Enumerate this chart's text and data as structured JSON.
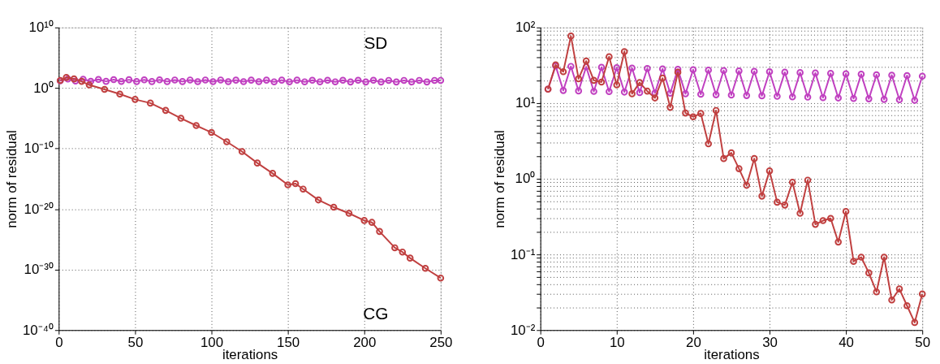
{
  "chart_data": [
    {
      "type": "line",
      "xlabel": "iterations",
      "ylabel": "norm of residual",
      "log": true,
      "grid": true,
      "marker": "circle",
      "line_style": "solid",
      "xlim": [
        0,
        250
      ],
      "xticks": [
        0,
        50,
        100,
        150,
        200,
        250
      ],
      "ylim": [
        1e-40,
        10000000000.0
      ],
      "yticks": [
        {
          "value": 1e-40,
          "label": "10⁻⁴⁰"
        },
        {
          "value": 1e-30,
          "label": "10⁻³⁰"
        },
        {
          "value": 1e-20,
          "label": "10⁻²⁰"
        },
        {
          "value": 1e-10,
          "label": "10⁻¹⁰"
        },
        {
          "value": 1,
          "label": "10⁰"
        },
        {
          "value": 10000000000.0,
          "label": "10¹⁰"
        }
      ],
      "series": [
        {
          "name": "SD",
          "color": "#c040c0",
          "x": [
            1,
            6,
            11,
            16,
            21,
            26,
            31,
            36,
            41,
            46,
            51,
            56,
            61,
            66,
            71,
            76,
            81,
            86,
            91,
            96,
            101,
            106,
            111,
            116,
            121,
            126,
            131,
            136,
            141,
            146,
            151,
            156,
            161,
            166,
            171,
            176,
            181,
            186,
            191,
            196,
            201,
            206,
            211,
            216,
            221,
            226,
            231,
            236,
            241,
            246,
            250
          ],
          "values": [
            15,
            30,
            14,
            28,
            13,
            26,
            12.5,
            24,
            12,
            23,
            11.5,
            22,
            11.5,
            22,
            11.5,
            21,
            11.5,
            21,
            11,
            21,
            11,
            21,
            11,
            20,
            11,
            20,
            11,
            20,
            10.5,
            20,
            10.5,
            20,
            10.5,
            19,
            10.5,
            19,
            10.5,
            19,
            10,
            19,
            10,
            19,
            10,
            18,
            10,
            18,
            10,
            18,
            10,
            18,
            18
          ]
        },
        {
          "name": "CG",
          "color": "#c04040",
          "x": [
            1,
            5,
            10,
            15,
            20,
            30,
            40,
            50,
            60,
            70,
            80,
            90,
            100,
            110,
            120,
            130,
            140,
            150,
            155,
            160,
            170,
            180,
            190,
            200,
            205,
            210,
            220,
            225,
            230,
            240,
            250
          ],
          "values": [
            18,
            55,
            32,
            12.6,
            3.2,
            0.59,
            0.1,
            0.013,
            0.0032,
            0.0002,
            1e-05,
            6.3e-07,
            4.5e-08,
            1.3e-09,
            3.2e-11,
            4e-13,
            7.9e-15,
            1e-16,
            1.6e-16,
            2e-17,
            3.2e-19,
            2e-20,
            2e-21,
            1.3e-22,
            6.3e-23,
            2e-24,
            4e-27,
            7.9e-28,
            7.9e-29,
            1.6e-30,
            4e-32
          ]
        }
      ]
    },
    {
      "type": "line",
      "xlabel": "iterations",
      "ylabel": "norm of residual",
      "log": true,
      "grid": true,
      "marker": "circle",
      "line_style": "solid",
      "xlim": [
        0,
        50
      ],
      "xticks": [
        0,
        10,
        20,
        30,
        40,
        50
      ],
      "ylim": [
        0.01,
        100
      ],
      "yticks": [
        {
          "value": 0.01,
          "label": "10⁻²"
        },
        {
          "value": 0.02,
          "label": null
        },
        {
          "value": 0.03,
          "label": null
        },
        {
          "value": 0.04,
          "label": null
        },
        {
          "value": 0.05,
          "label": null
        },
        {
          "value": 0.06,
          "label": null
        },
        {
          "value": 0.07,
          "label": null
        },
        {
          "value": 0.08,
          "label": null
        },
        {
          "value": 0.09,
          "label": null
        },
        {
          "value": 0.1,
          "label": "10⁻¹"
        },
        {
          "value": 0.2,
          "label": null
        },
        {
          "value": 0.3,
          "label": null
        },
        {
          "value": 0.4,
          "label": null
        },
        {
          "value": 0.5,
          "label": null
        },
        {
          "value": 0.6,
          "label": null
        },
        {
          "value": 0.7,
          "label": null
        },
        {
          "value": 0.8,
          "label": null
        },
        {
          "value": 0.9,
          "label": null
        },
        {
          "value": 1,
          "label": "10⁰"
        },
        {
          "value": 2,
          "label": null
        },
        {
          "value": 3,
          "label": null
        },
        {
          "value": 4,
          "label": null
        },
        {
          "value": 5,
          "label": null
        },
        {
          "value": 6,
          "label": null
        },
        {
          "value": 7,
          "label": null
        },
        {
          "value": 8,
          "label": null
        },
        {
          "value": 9,
          "label": null
        },
        {
          "value": 10,
          "label": "10¹"
        },
        {
          "value": 20,
          "label": null
        },
        {
          "value": 30,
          "label": null
        },
        {
          "value": 40,
          "label": null
        },
        {
          "value": 50,
          "label": null
        },
        {
          "value": 60,
          "label": null
        },
        {
          "value": 70,
          "label": null
        },
        {
          "value": 80,
          "label": null
        },
        {
          "value": 90,
          "label": null
        },
        {
          "value": 100,
          "label": "10²"
        }
      ],
      "series": [
        {
          "color": "#c040c0",
          "x": [
            1,
            2,
            3,
            4,
            5,
            6,
            7,
            8,
            9,
            10,
            11,
            12,
            13,
            14,
            15,
            16,
            17,
            18,
            19,
            20,
            21,
            22,
            23,
            24,
            25,
            26,
            27,
            28,
            29,
            30,
            31,
            32,
            33,
            34,
            35,
            36,
            37,
            38,
            39,
            40,
            41,
            42,
            43,
            44,
            45,
            46,
            47,
            48,
            49,
            50
          ],
          "values": [
            15.3,
            31,
            14.7,
            30.6,
            14.5,
            30.2,
            14.3,
            29.8,
            14.2,
            29.4,
            14,
            29.1,
            13.8,
            28.7,
            13.6,
            28.4,
            13.5,
            28,
            13.3,
            27.7,
            13.1,
            27.3,
            12.9,
            27,
            12.8,
            26.6,
            12.6,
            26.3,
            12.5,
            26,
            12.3,
            25.6,
            12.1,
            25.3,
            12,
            25,
            11.8,
            24.7,
            11.7,
            24.4,
            11.5,
            24.1,
            11.4,
            23.7,
            11.2,
            23.4,
            11.1,
            23.1,
            10.9,
            22.7
          ]
        },
        {
          "color": "#c04040",
          "x": [
            1,
            2,
            3,
            4,
            5,
            6,
            7,
            8,
            9,
            10,
            11,
            12,
            13,
            14,
            15,
            16,
            17,
            18,
            19,
            20,
            21,
            22,
            23,
            24,
            25,
            26,
            27,
            28,
            29,
            30,
            31,
            32,
            33,
            34,
            35,
            36,
            37,
            38,
            39,
            40,
            41,
            42,
            43,
            44,
            45,
            46,
            47,
            48,
            49,
            50
          ],
          "values": [
            15.3,
            32,
            26,
            77,
            21,
            36,
            20,
            19,
            41,
            17.4,
            48,
            13.3,
            18.7,
            14.4,
            11.7,
            21.4,
            8.8,
            25.6,
            7.4,
            6.6,
            7.3,
            2.9,
            8,
            1.85,
            2.2,
            1.36,
            0.82,
            1.85,
            0.59,
            1.27,
            0.49,
            0.45,
            0.9,
            0.35,
            0.96,
            0.25,
            0.28,
            0.3,
            0.146,
            0.37,
            0.081,
            0.092,
            0.057,
            0.032,
            0.092,
            0.025,
            0.035,
            0.021,
            0.0126,
            0.03
          ]
        }
      ]
    }
  ]
}
